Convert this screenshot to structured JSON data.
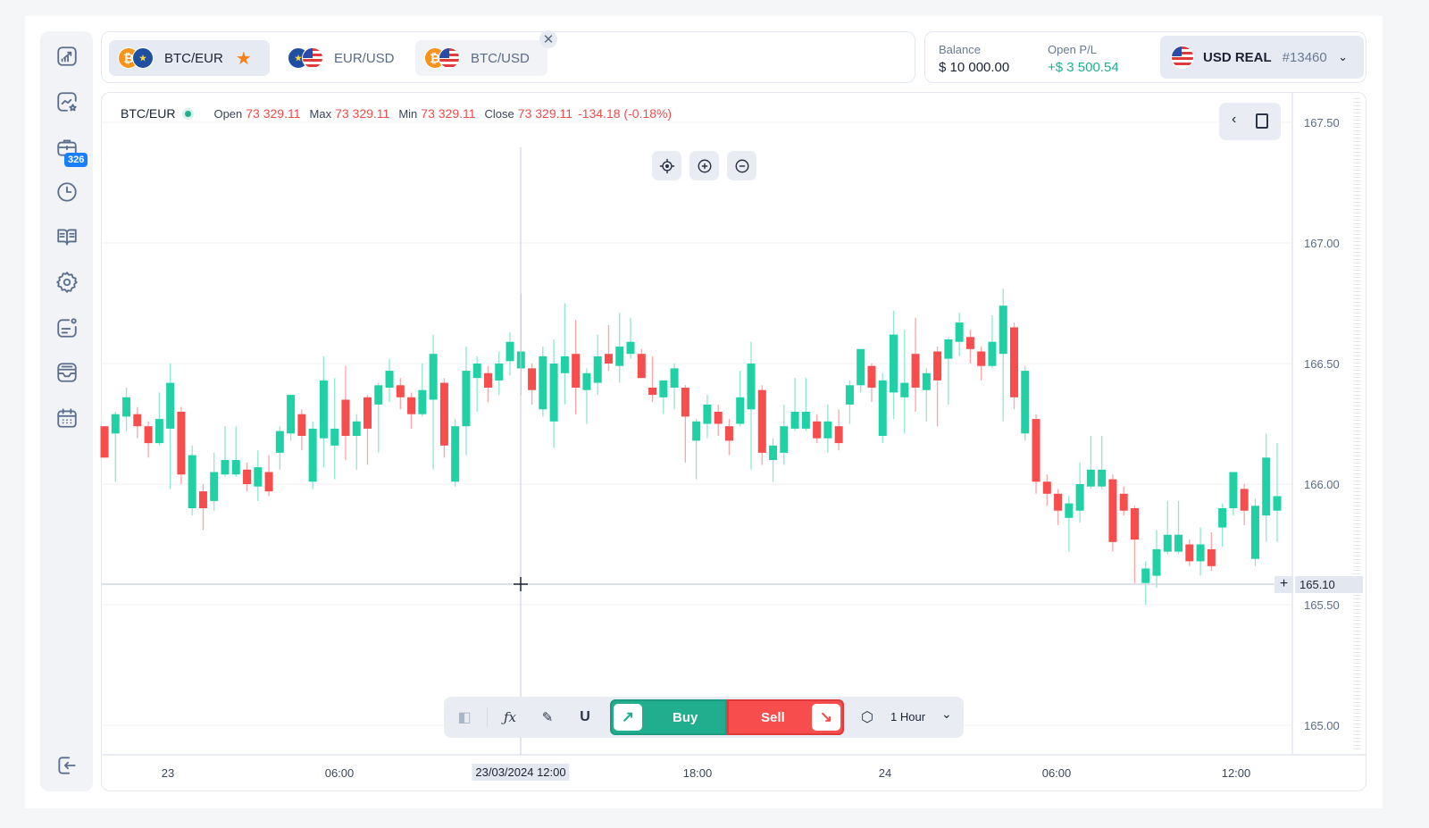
{
  "sidebar": {
    "items": [
      "analytics",
      "watchlist",
      "portfolio",
      "history",
      "education",
      "settings",
      "news",
      "messages",
      "calendar",
      "logout"
    ],
    "portfolio_badge": "326"
  },
  "tabs": [
    {
      "label": "BTC/EUR",
      "active": true,
      "favorite": true
    },
    {
      "label": "EUR/USD",
      "active": false
    },
    {
      "label": "BTC/USD",
      "active": false
    }
  ],
  "account": {
    "balance_label": "Balance",
    "balance": "$ 10 000.00",
    "pl_label": "Open P/L",
    "pl": "+$ 3 500.54",
    "name": "USD REAL",
    "number": "#13460"
  },
  "chart_header": {
    "symbol": "BTC/EUR",
    "open_label": "Open",
    "open": "73 329.11",
    "max_label": "Max",
    "max": "73 329.11",
    "min_label": "Min",
    "min": "73 329.11",
    "close_label": "Close",
    "close": "73 329.11",
    "change": "-134.18 (-0.18%)"
  },
  "crosshair": {
    "price": "165.10",
    "time": "23/03/2024 12:00"
  },
  "toolbar": {
    "buy": "Buy",
    "sell": "Sell",
    "timeframe": "1 Hour"
  },
  "colors": {
    "up": "#1fd1a4",
    "down": "#f74d4d",
    "accent": "#1a7fff"
  },
  "chart_data": {
    "type": "candlestick",
    "ylim": [
      165.0,
      167.5
    ],
    "y_ticks": [
      "167.50",
      "167.00",
      "166.50",
      "166.00",
      "165.50",
      "165.00"
    ],
    "x_ticks": [
      "23",
      "06:00",
      "18:00",
      "24",
      "06:00",
      "12:00"
    ],
    "ohlc": [
      [
        166.24,
        166.24,
        166.11,
        166.11
      ],
      [
        166.21,
        166.3,
        166.01,
        166.29
      ],
      [
        166.28,
        166.4,
        166.22,
        166.36
      ],
      [
        166.29,
        166.32,
        166.19,
        166.24
      ],
      [
        166.24,
        166.26,
        166.11,
        166.17
      ],
      [
        166.17,
        166.38,
        166.16,
        166.27
      ],
      [
        166.23,
        166.5,
        165.98,
        166.42
      ],
      [
        166.3,
        166.32,
        166.0,
        166.04
      ],
      [
        165.9,
        166.16,
        165.87,
        166.12
      ],
      [
        165.97,
        166.0,
        165.81,
        165.9
      ],
      [
        165.93,
        166.13,
        165.89,
        166.05
      ],
      [
        166.04,
        166.24,
        166.03,
        166.1
      ],
      [
        166.04,
        166.24,
        166.03,
        166.1
      ],
      [
        166.06,
        166.09,
        165.97,
        166.0
      ],
      [
        165.99,
        166.14,
        165.93,
        166.07
      ],
      [
        166.05,
        166.12,
        165.95,
        165.97
      ],
      [
        166.13,
        166.24,
        166.06,
        166.22
      ],
      [
        166.21,
        166.37,
        166.18,
        166.37
      ],
      [
        166.29,
        166.31,
        166.14,
        166.2
      ],
      [
        166.01,
        166.26,
        165.98,
        166.23
      ],
      [
        166.19,
        166.53,
        166.07,
        166.43
      ],
      [
        166.16,
        166.44,
        166.02,
        166.23
      ],
      [
        166.35,
        166.49,
        166.1,
        166.2
      ],
      [
        166.2,
        166.29,
        166.06,
        166.26
      ],
      [
        166.36,
        166.37,
        166.08,
        166.23
      ],
      [
        166.33,
        166.42,
        166.13,
        166.41
      ],
      [
        166.4,
        166.52,
        166.34,
        166.47
      ],
      [
        166.41,
        166.44,
        166.31,
        166.36
      ],
      [
        166.36,
        166.38,
        166.23,
        166.29
      ],
      [
        166.29,
        166.5,
        166.28,
        166.39
      ],
      [
        166.35,
        166.62,
        166.06,
        166.54
      ],
      [
        166.42,
        166.44,
        166.11,
        166.16
      ],
      [
        166.01,
        166.27,
        165.99,
        166.24
      ],
      [
        166.24,
        166.57,
        166.12,
        166.47
      ],
      [
        166.44,
        166.53,
        166.3,
        166.5
      ],
      [
        166.46,
        166.49,
        166.34,
        166.4
      ],
      [
        166.43,
        166.55,
        166.37,
        166.5
      ],
      [
        166.51,
        166.63,
        166.45,
        166.59
      ],
      [
        166.48,
        166.79,
        166.37,
        166.55
      ],
      [
        166.48,
        166.5,
        166.33,
        166.39
      ],
      [
        166.31,
        166.57,
        166.28,
        166.53
      ],
      [
        166.26,
        166.6,
        166.15,
        166.5
      ],
      [
        166.46,
        166.75,
        166.33,
        166.53
      ],
      [
        166.54,
        166.68,
        166.29,
        166.4
      ],
      [
        166.39,
        166.48,
        166.25,
        166.46
      ],
      [
        166.42,
        166.62,
        166.37,
        166.53
      ],
      [
        166.54,
        166.66,
        166.47,
        166.5
      ],
      [
        166.49,
        166.71,
        166.42,
        166.57
      ],
      [
        166.54,
        166.69,
        166.52,
        166.59
      ],
      [
        166.54,
        166.56,
        166.44,
        166.44
      ],
      [
        166.4,
        166.53,
        166.34,
        166.37
      ],
      [
        166.36,
        166.43,
        166.29,
        166.43
      ],
      [
        166.4,
        166.5,
        166.31,
        166.48
      ],
      [
        166.4,
        166.41,
        166.09,
        166.28
      ],
      [
        166.18,
        166.27,
        166.02,
        166.26
      ],
      [
        166.25,
        166.37,
        166.19,
        166.33
      ],
      [
        166.3,
        166.33,
        166.2,
        166.25
      ],
      [
        166.24,
        166.27,
        166.12,
        166.18
      ],
      [
        166.25,
        166.47,
        166.24,
        166.36
      ],
      [
        166.31,
        166.59,
        166.06,
        166.5
      ],
      [
        166.39,
        166.41,
        166.08,
        166.13
      ],
      [
        166.1,
        166.19,
        166.01,
        166.16
      ],
      [
        166.13,
        166.33,
        166.08,
        166.24
      ],
      [
        166.23,
        166.44,
        166.22,
        166.3
      ],
      [
        166.23,
        166.44,
        166.22,
        166.3
      ],
      [
        166.26,
        166.29,
        166.17,
        166.19
      ],
      [
        166.19,
        166.33,
        166.13,
        166.26
      ],
      [
        166.24,
        166.31,
        166.14,
        166.17
      ],
      [
        166.33,
        166.43,
        166.25,
        166.41
      ],
      [
        166.41,
        166.56,
        166.38,
        166.56
      ],
      [
        166.49,
        166.5,
        166.34,
        166.4
      ],
      [
        166.2,
        166.46,
        166.17,
        166.43
      ],
      [
        166.38,
        166.72,
        166.27,
        166.62
      ],
      [
        166.36,
        166.64,
        166.21,
        166.42
      ],
      [
        166.54,
        166.69,
        166.3,
        166.4
      ],
      [
        166.39,
        166.48,
        166.26,
        166.46
      ],
      [
        166.55,
        166.57,
        166.24,
        166.43
      ],
      [
        166.52,
        166.61,
        166.33,
        166.6
      ],
      [
        166.59,
        166.71,
        166.53,
        166.67
      ],
      [
        166.61,
        166.64,
        166.5,
        166.56
      ],
      [
        166.55,
        166.57,
        166.43,
        166.49
      ],
      [
        166.49,
        166.7,
        166.48,
        166.59
      ],
      [
        166.54,
        166.81,
        166.26,
        166.74
      ],
      [
        166.65,
        166.67,
        166.31,
        166.36
      ],
      [
        166.21,
        166.49,
        166.18,
        166.47
      ],
      [
        166.27,
        166.29,
        165.96,
        166.01
      ],
      [
        166.01,
        166.04,
        165.91,
        165.96
      ],
      [
        165.96,
        165.98,
        165.83,
        165.89
      ],
      [
        165.86,
        165.95,
        165.72,
        165.92
      ],
      [
        165.89,
        166.09,
        165.84,
        166.0
      ],
      [
        165.99,
        166.2,
        165.98,
        166.06
      ],
      [
        165.99,
        166.2,
        165.98,
        166.06
      ],
      [
        166.02,
        166.04,
        165.72,
        165.76
      ],
      [
        165.96,
        165.99,
        165.87,
        165.89
      ],
      [
        165.9,
        165.91,
        165.59,
        165.77
      ],
      [
        165.59,
        165.68,
        165.5,
        165.65
      ],
      [
        165.62,
        165.81,
        165.57,
        165.73
      ],
      [
        165.72,
        165.93,
        165.71,
        165.79
      ],
      [
        165.72,
        165.93,
        165.71,
        165.79
      ],
      [
        165.75,
        165.77,
        165.66,
        165.68
      ],
      [
        165.68,
        165.82,
        165.62,
        165.75
      ],
      [
        165.73,
        165.8,
        165.64,
        165.66
      ],
      [
        165.82,
        165.92,
        165.74,
        165.9
      ],
      [
        165.9,
        166.05,
        165.87,
        166.05
      ],
      [
        165.98,
        166.0,
        165.83,
        165.89
      ],
      [
        165.69,
        165.94,
        165.66,
        165.91
      ],
      [
        165.87,
        166.21,
        165.76,
        166.11
      ],
      [
        165.89,
        166.17,
        165.76,
        165.95
      ]
    ]
  }
}
